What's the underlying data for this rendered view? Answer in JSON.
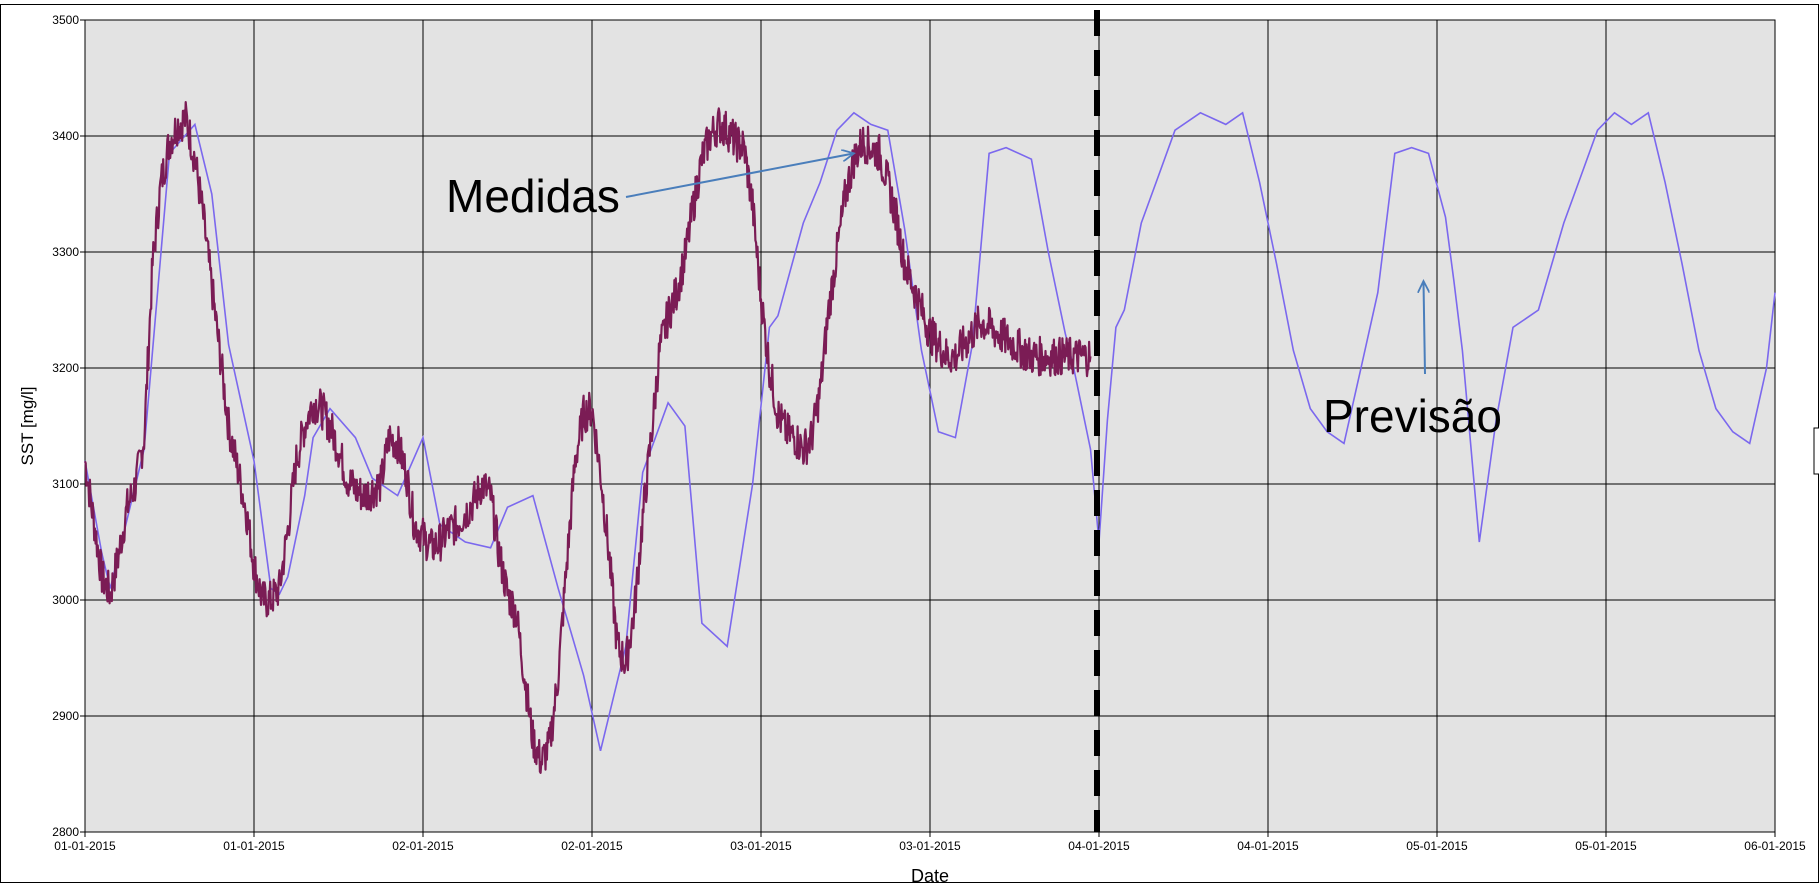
{
  "chart_data": {
    "type": "line",
    "title": "",
    "xlabel": "Date",
    "ylabel": "SST [mg/l]",
    "ylim": [
      2800,
      3500
    ],
    "yticks": [
      2800,
      2900,
      3000,
      3100,
      3200,
      3300,
      3400,
      3500
    ],
    "xlim": [
      0,
      10
    ],
    "xtick_labels": [
      "01-01-2015",
      "01-01-2015",
      "02-01-2015",
      "02-01-2015",
      "03-01-2015",
      "03-01-2015",
      "04-01-2015",
      "04-01-2015",
      "05-01-2015",
      "05-01-2015",
      "06-01-2015"
    ],
    "grid": true,
    "forecast_start_x": 6,
    "annotations": [
      {
        "text": "Medidas",
        "points_to": [
          4.55,
          3385
        ]
      },
      {
        "text": "Previsão",
        "points_to": [
          7.92,
          3275
        ]
      }
    ],
    "series": [
      {
        "color": "#7b68ee",
        "style": "smooth",
        "x": [
          0.0,
          0.1,
          0.15,
          0.3,
          0.35,
          0.5,
          0.65,
          0.75,
          0.85,
          1.0,
          1.1,
          1.15,
          1.2,
          1.3,
          1.35,
          1.45,
          1.6,
          1.7,
          1.85,
          2.0,
          2.1,
          2.25,
          2.4,
          2.5,
          2.65,
          2.8,
          2.95,
          3.05,
          3.2,
          3.3,
          3.45,
          3.55,
          3.65,
          3.8,
          3.95,
          4.05,
          4.1,
          4.25,
          4.35,
          4.45,
          4.55,
          4.65,
          4.75,
          4.85,
          4.95,
          5.05,
          5.15,
          5.25,
          5.35,
          5.45,
          5.6,
          5.7,
          5.8,
          5.85,
          5.95,
          6.0,
          6.05,
          6.1,
          6.15,
          6.25,
          6.35,
          6.45,
          6.6,
          6.75,
          6.85,
          6.95,
          7.05,
          7.15,
          7.25,
          7.35,
          7.45,
          7.55,
          7.65,
          7.75,
          7.85,
          7.95,
          8.05,
          8.1,
          8.15,
          8.25,
          8.35,
          8.45,
          8.6,
          8.75,
          8.85,
          8.95,
          9.05,
          9.15,
          9.25,
          9.35,
          9.45,
          9.55,
          9.65,
          9.75,
          9.85,
          9.95,
          10.0
        ],
        "values": [
          3120,
          3040,
          3010,
          3100,
          3130,
          3385,
          3410,
          3350,
          3220,
          3120,
          3010,
          3005,
          3020,
          3090,
          3140,
          3165,
          3140,
          3105,
          3090,
          3140,
          3065,
          3050,
          3045,
          3080,
          3090,
          3010,
          2935,
          2870,
          2960,
          3110,
          3170,
          3150,
          2980,
          2960,
          3100,
          3235,
          3245,
          3325,
          3360,
          3405,
          3420,
          3410,
          3405,
          3320,
          3215,
          3145,
          3140,
          3220,
          3385,
          3390,
          3380,
          3300,
          3230,
          3200,
          3130,
          3050,
          3155,
          3235,
          3250,
          3325,
          3365,
          3405,
          3420,
          3410,
          3420,
          3360,
          3290,
          3215,
          3165,
          3145,
          3135,
          3200,
          3265,
          3385,
          3390,
          3385,
          3330,
          3275,
          3215,
          3050,
          3155,
          3235,
          3250,
          3325,
          3365,
          3405,
          3420,
          3410,
          3420,
          3360,
          3290,
          3215,
          3165,
          3145,
          3135,
          3200,
          3265
        ]
      },
      {
        "color": "#7b1c55",
        "style": "noisy",
        "x": [
          0.0,
          0.05,
          0.1,
          0.15,
          0.2,
          0.25,
          0.3,
          0.35,
          0.4,
          0.45,
          0.5,
          0.55,
          0.6,
          0.65,
          0.7,
          0.75,
          0.8,
          0.85,
          0.9,
          0.95,
          1.0,
          1.05,
          1.1,
          1.15,
          1.2,
          1.25,
          1.3,
          1.35,
          1.4,
          1.45,
          1.5,
          1.55,
          1.6,
          1.65,
          1.7,
          1.75,
          1.8,
          1.85,
          1.9,
          1.95,
          2.0,
          2.05,
          2.1,
          2.15,
          2.2,
          2.25,
          2.3,
          2.35,
          2.4,
          2.45,
          2.5,
          2.55,
          2.6,
          2.65,
          2.7,
          2.75,
          2.8,
          2.85,
          2.9,
          2.95,
          3.0,
          3.05,
          3.1,
          3.15,
          3.2,
          3.25,
          3.3,
          3.35,
          3.4,
          3.45,
          3.5,
          3.55,
          3.6,
          3.65,
          3.7,
          3.75,
          3.8,
          3.85,
          3.9,
          3.95,
          4.0,
          4.05,
          4.1,
          4.15,
          4.2,
          4.25,
          4.3,
          4.35,
          4.4,
          4.45,
          4.5,
          4.55,
          4.6,
          4.65,
          4.7,
          4.75,
          4.8,
          4.85,
          4.9,
          4.95,
          5.0,
          5.05,
          5.1,
          5.15,
          5.2,
          5.25,
          5.3,
          5.35,
          5.4,
          5.45,
          5.5,
          5.55,
          5.6,
          5.65,
          5.7,
          5.75,
          5.8,
          5.85,
          5.9,
          5.95
        ],
        "values": [
          3120,
          3070,
          3020,
          3005,
          3040,
          3080,
          3100,
          3140,
          3290,
          3360,
          3395,
          3410,
          3415,
          3380,
          3330,
          3270,
          3210,
          3150,
          3115,
          3080,
          3030,
          3000,
          3000,
          3010,
          3060,
          3120,
          3150,
          3170,
          3165,
          3150,
          3130,
          3105,
          3095,
          3090,
          3095,
          3100,
          3140,
          3135,
          3110,
          3065,
          3055,
          3045,
          3050,
          3060,
          3065,
          3075,
          3085,
          3100,
          3090,
          3040,
          3005,
          2990,
          2935,
          2880,
          2860,
          2875,
          2935,
          3030,
          3120,
          3160,
          3165,
          3110,
          3040,
          2960,
          2945,
          2990,
          3070,
          3140,
          3215,
          3245,
          3265,
          3295,
          3340,
          3380,
          3400,
          3410,
          3405,
          3395,
          3390,
          3340,
          3260,
          3200,
          3160,
          3145,
          3140,
          3130,
          3140,
          3180,
          3250,
          3300,
          3350,
          3380,
          3395,
          3390,
          3385,
          3360,
          3330,
          3290,
          3270,
          3250,
          3230,
          3220,
          3210,
          3210,
          3220,
          3230,
          3240,
          3235,
          3230,
          3225,
          3220,
          3215,
          3210,
          3210,
          3210,
          3210,
          3210,
          3210,
          3210,
          3210
        ]
      }
    ]
  }
}
